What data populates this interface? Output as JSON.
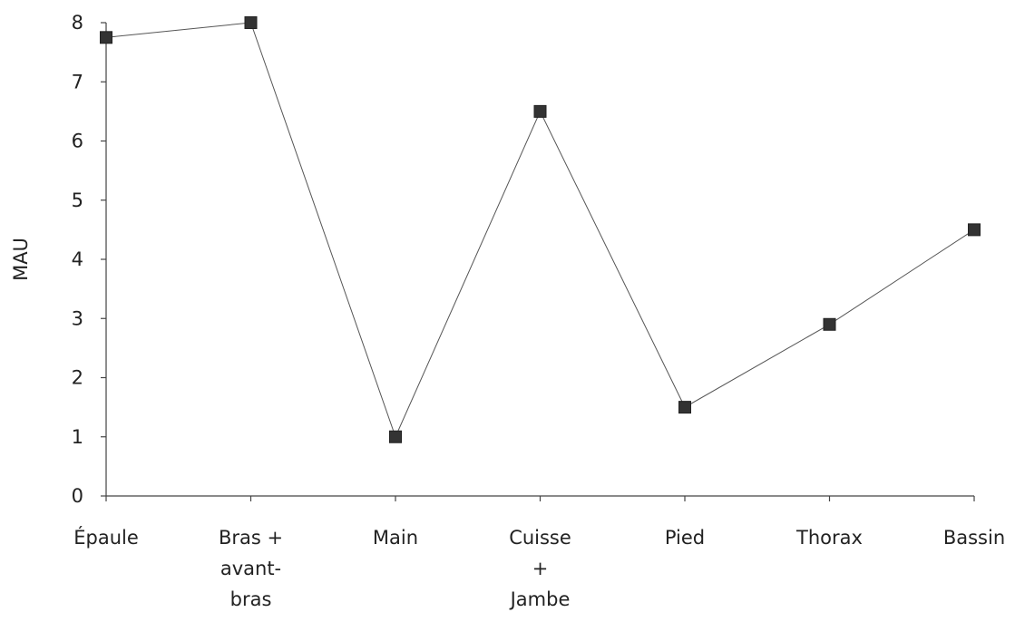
{
  "chart_data": {
    "type": "line",
    "title": "",
    "xlabel": "",
    "ylabel": "MAU",
    "ylim": [
      0,
      8
    ],
    "yticks": [
      "0",
      "1",
      "2",
      "3",
      "4",
      "5",
      "6",
      "7",
      "8"
    ],
    "grid": false,
    "categories": [
      [
        "Épaule"
      ],
      [
        "Bras +",
        "avant-",
        "bras"
      ],
      [
        "Main"
      ],
      [
        "Cuisse",
        "+",
        "Jambe"
      ],
      [
        "Pied"
      ],
      [
        "Thorax"
      ],
      [
        "Bassin"
      ]
    ],
    "series": [
      {
        "values": [
          7.75,
          8.0,
          1.0,
          6.5,
          1.5,
          2.9,
          4.5
        ],
        "color": "#555555",
        "marker": "square"
      }
    ]
  }
}
